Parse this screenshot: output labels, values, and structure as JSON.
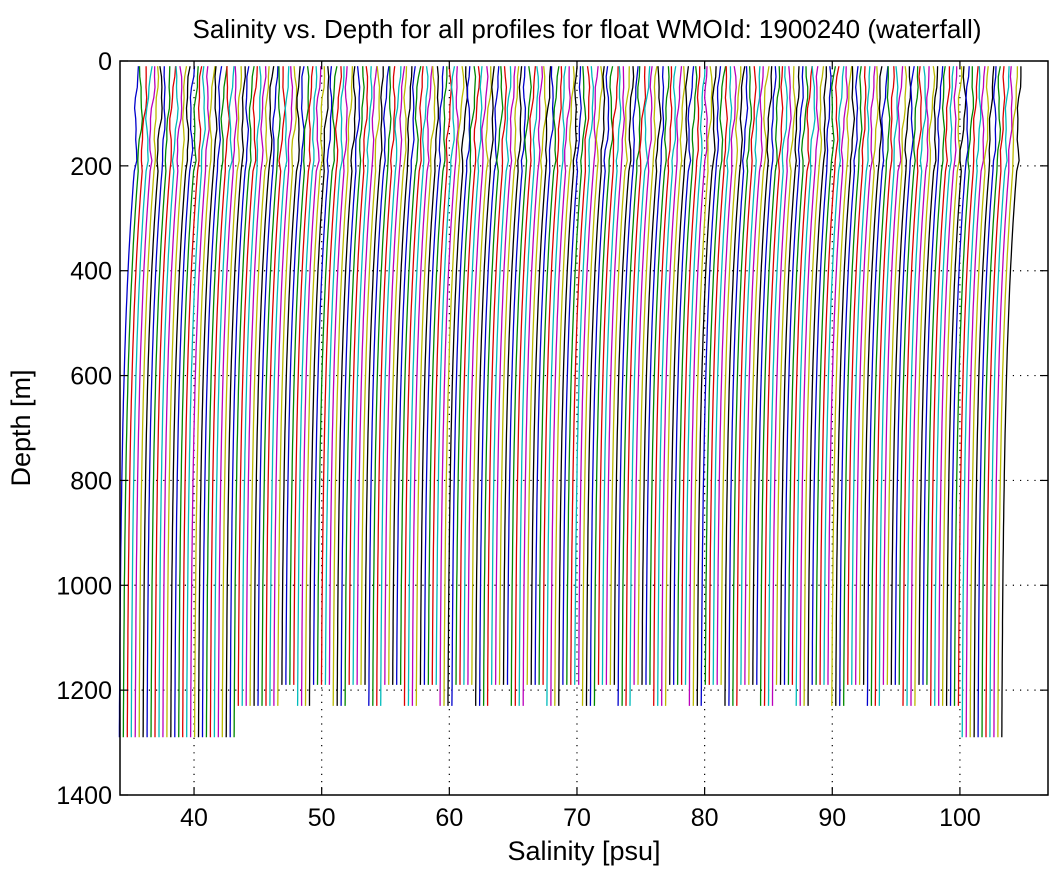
{
  "chart_data": {
    "type": "line",
    "title": "Salinity vs. Depth for all profiles for float WMOId: 1900240 (waterfall)",
    "xlabel": "Salinity [psu]",
    "ylabel": "Depth [m]",
    "xlim": [
      34.2,
      106.9
    ],
    "ylim": [
      0,
      1400
    ],
    "y_reversed": true,
    "grid": true,
    "xticks": [
      40,
      50,
      60,
      70,
      80,
      90,
      100
    ],
    "yticks": [
      0,
      200,
      400,
      600,
      800,
      1000,
      1200,
      1400
    ],
    "series_colors": [
      "#0000cc",
      "#008800",
      "#dd0000",
      "#00bbbb",
      "#bb00bb",
      "#bbbb00",
      "#000000"
    ],
    "waterfall": {
      "profile_count": 224,
      "first_surface_salinity": 35.6,
      "offset_per_profile_psu": 0.31,
      "surface_depth_m": 10,
      "gradient_break_depth_m": 200,
      "salinity_drop_to_break_psu": 0.25,
      "salinity_drop_to_bottom_psu": 1.45,
      "bottom_depth_groups_m": [
        1290,
        1240,
        1190
      ],
      "note": "Each profile is offset by a constant salinity step; salinity decreases with depth."
    }
  }
}
